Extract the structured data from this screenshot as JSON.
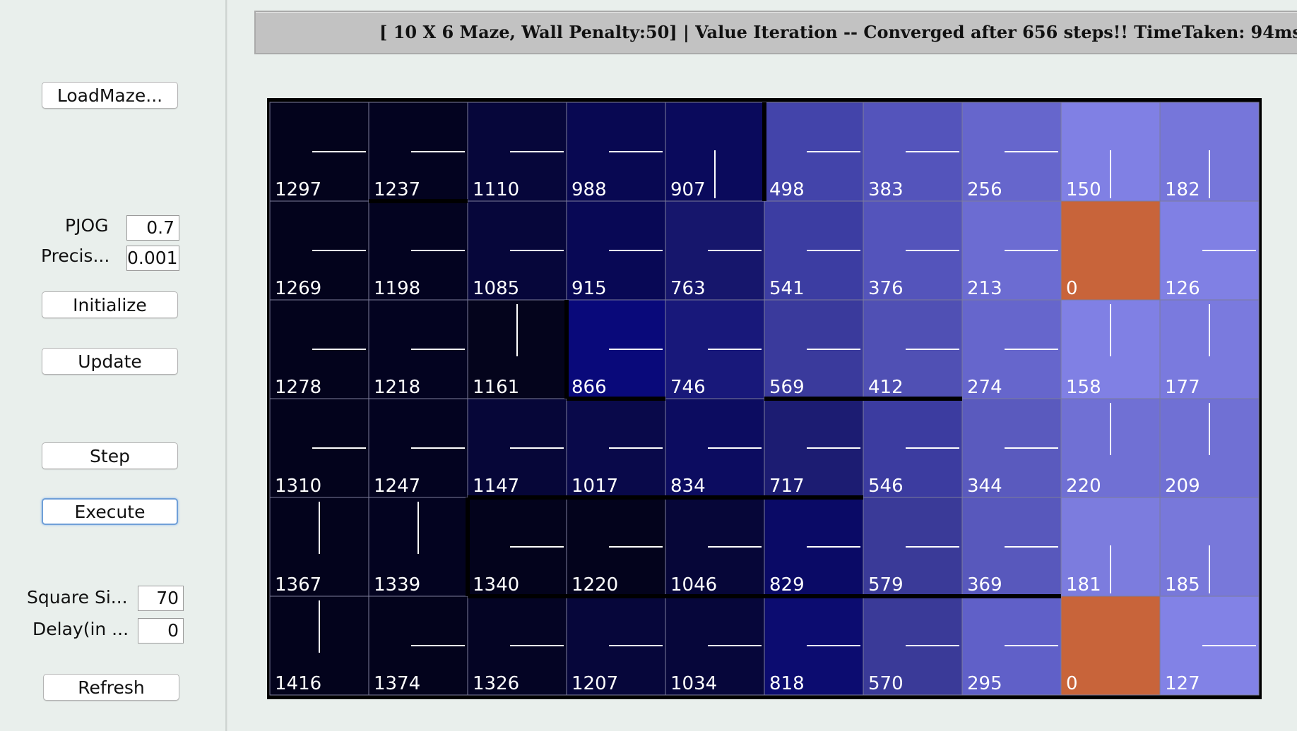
{
  "sidebar": {
    "load_maze_label": "LoadMaze...",
    "pjog_label": "PJOG",
    "pjog_value": "0.7",
    "precision_label": "Precis...",
    "precision_value": "0.001",
    "initialize_label": "Initialize",
    "update_label": "Update",
    "step_label": "Step",
    "execute_label": "Execute",
    "square_size_label": "Square Si...",
    "square_size_value": "70",
    "delay_label": "Delay(in ...",
    "delay_value": "0",
    "refresh_label": "Refresh"
  },
  "header": {
    "status_text": "[ 10 X 6 Maze, Wall Penalty:50] |  Value Iteration -- Converged after 656 steps!! TimeTaken: 94ms"
  },
  "maze": {
    "cols": 10,
    "rows": 6,
    "goal_color": "#c8643a",
    "values": [
      [
        1297,
        1237,
        1110,
        988,
        907,
        498,
        383,
        256,
        150,
        182
      ],
      [
        1269,
        1198,
        1085,
        915,
        763,
        541,
        376,
        213,
        0,
        126
      ],
      [
        1278,
        1218,
        1161,
        866,
        746,
        569,
        412,
        274,
        158,
        177
      ],
      [
        1310,
        1247,
        1147,
        1017,
        834,
        717,
        546,
        344,
        220,
        209
      ],
      [
        1367,
        1339,
        1340,
        1220,
        1046,
        829,
        579,
        369,
        181,
        185
      ],
      [
        1416,
        1374,
        1326,
        1207,
        1034,
        818,
        570,
        295,
        0,
        127
      ]
    ],
    "policy": [
      [
        "left",
        "left",
        "left",
        "left",
        "down",
        "left",
        "left",
        "left",
        "down",
        "down"
      ],
      [
        "left",
        "left",
        "left",
        "left",
        "left",
        "left",
        "left",
        "left",
        "goal",
        "left"
      ],
      [
        "left",
        "left",
        "up",
        "left",
        "left",
        "left",
        "left",
        "left",
        "up",
        "up"
      ],
      [
        "left",
        "left",
        "left",
        "left",
        "left",
        "left",
        "left",
        "left",
        "up",
        "up"
      ],
      [
        "up",
        "up",
        "left",
        "left",
        "left",
        "left",
        "left",
        "left",
        "down",
        "down"
      ],
      [
        "up",
        "left",
        "left",
        "left",
        "left",
        "left",
        "left",
        "left",
        "goal",
        "left"
      ]
    ],
    "colors": [
      [
        "#03031c",
        "#030320",
        "#06063a",
        "#080852",
        "#0a0a5c",
        "#4344aa",
        "#5454bb",
        "#6666cc",
        "#8080e4",
        "#7676da"
      ],
      [
        "#03031c",
        "#030320",
        "#06063a",
        "#080855",
        "#16166c",
        "#3c3da2",
        "#5454bb",
        "#6c6cd2",
        "#c8643a",
        "#8080e4"
      ],
      [
        "#03031c",
        "#030320",
        "#04041c",
        "#09097a",
        "#18187a",
        "#3a3a9c",
        "#5050b4",
        "#6666cc",
        "#8080e4",
        "#7a7ade"
      ],
      [
        "#03031c",
        "#030320",
        "#060638",
        "#09094a",
        "#0c0c60",
        "#1c1c72",
        "#3c3ca0",
        "#5a5abe",
        "#7070d4",
        "#7070d4"
      ],
      [
        "#03031c",
        "#030320",
        "#03031c",
        "#03031c",
        "#060638",
        "#0a0a66",
        "#3a3a98",
        "#5858bc",
        "#7c7cde",
        "#7878da"
      ],
      [
        "#03031c",
        "#03031c",
        "#040424",
        "#06063a",
        "#06063a",
        "#0c0c70",
        "#3a3a98",
        "#6060c8",
        "#c8643a",
        "#8282e6"
      ]
    ]
  }
}
